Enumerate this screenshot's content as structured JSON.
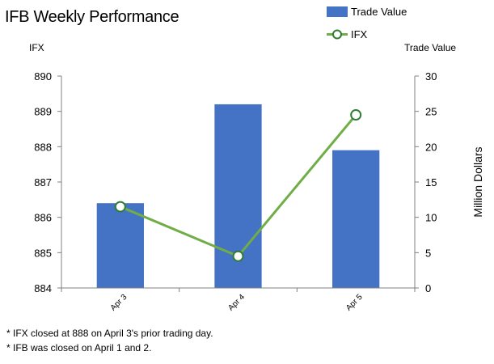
{
  "chart_data": {
    "type": "bar+line",
    "title": "IFB Weekly Performance",
    "categories": [
      "Apr 3",
      "Apr 4",
      "Apr 5"
    ],
    "series": [
      {
        "name": "Trade Value",
        "type": "bar",
        "axis": "right",
        "color": "#4472C4",
        "values": [
          12,
          26,
          19.5
        ]
      },
      {
        "name": "IFX",
        "type": "line",
        "axis": "left",
        "color": "#70AD47",
        "values": [
          886.3,
          884.9,
          888.9
        ]
      }
    ],
    "left_axis": {
      "unit_label": "IFX",
      "ylim": [
        884,
        890
      ],
      "ticks": [
        "884",
        "885",
        "886",
        "887",
        "888",
        "889",
        "890"
      ]
    },
    "right_axis": {
      "unit_label": "Trade Value",
      "ylabel": "Million Dollars",
      "ylim": [
        0,
        30
      ],
      "ticks": [
        "0",
        "5",
        "10",
        "15",
        "20",
        "25",
        "30"
      ]
    },
    "grid": false,
    "legend_position": "top-right",
    "footnotes": [
      "* IFX closed at 888 on April 3's prior trading day.",
      "* IFB was closed on April 1 and 2."
    ]
  }
}
